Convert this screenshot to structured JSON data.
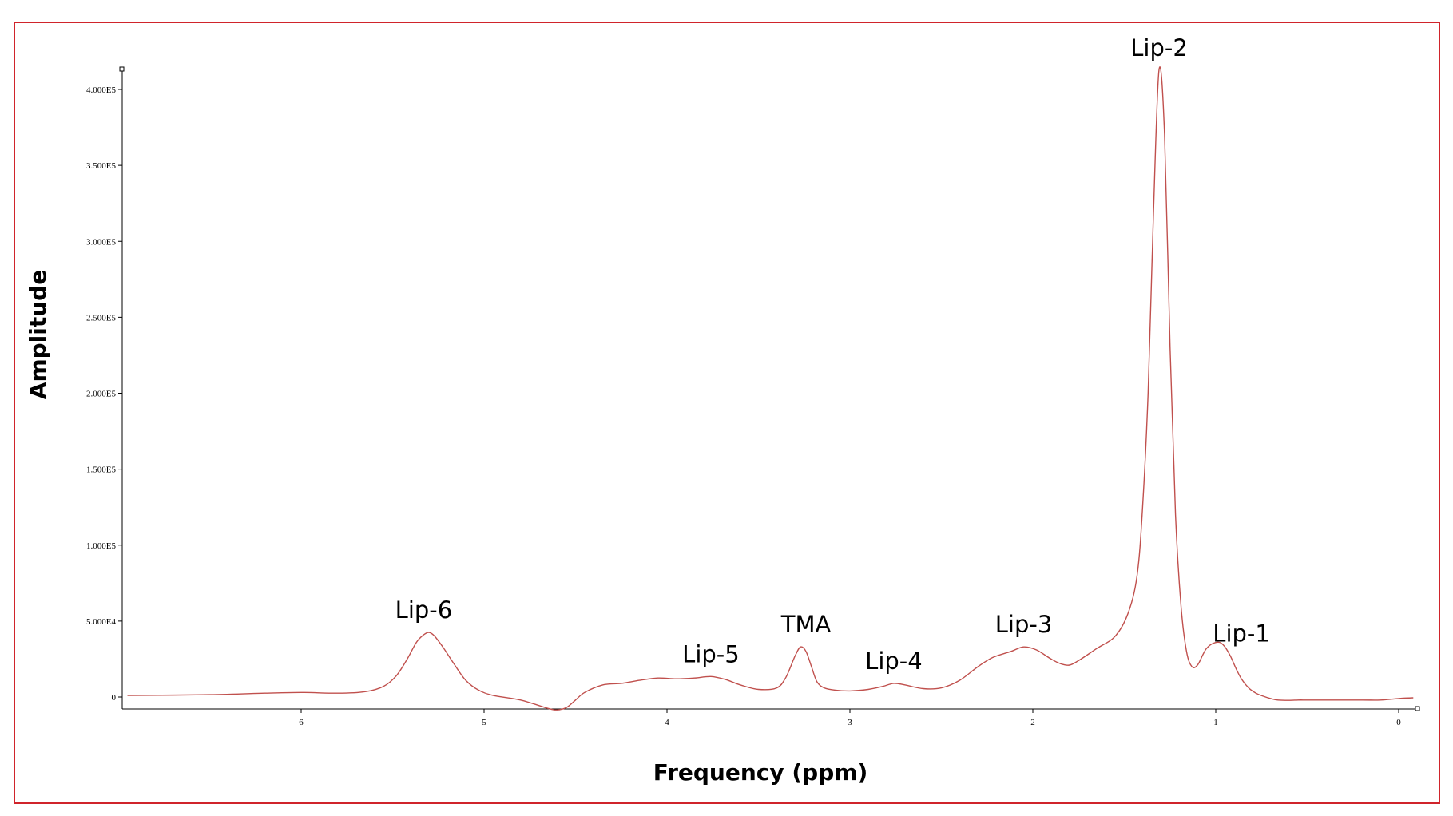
{
  "chart_data": {
    "type": "line",
    "xlabel": "Frequency (ppm)",
    "ylabel": "Amplitude",
    "x_reversed": true,
    "xlim": [
      6.95,
      -0.08
    ],
    "ylim": [
      -8000,
      413000
    ],
    "x_ticks": [
      {
        "value": 6,
        "label": "6"
      },
      {
        "value": 5,
        "label": "5"
      },
      {
        "value": 4,
        "label": "4"
      },
      {
        "value": 3,
        "label": "3"
      },
      {
        "value": 2,
        "label": "2"
      },
      {
        "value": 1,
        "label": "1"
      },
      {
        "value": 0,
        "label": "0"
      }
    ],
    "y_ticks": [
      {
        "value": 0,
        "label": "0"
      },
      {
        "value": 50000,
        "label": "5.000E4"
      },
      {
        "value": 100000,
        "label": "1.000E5"
      },
      {
        "value": 150000,
        "label": "1.500E5"
      },
      {
        "value": 200000,
        "label": "2.000E5"
      },
      {
        "value": 250000,
        "label": "2.500E5"
      },
      {
        "value": 300000,
        "label": "3.000E5"
      },
      {
        "value": 350000,
        "label": "3.500E5"
      },
      {
        "value": 400000,
        "label": "4.000E5"
      }
    ],
    "grid": false,
    "colors": {
      "line": "#c0504d",
      "axis": "#000000",
      "frame": "#d0242b"
    },
    "series": [
      {
        "x": [
          6.95,
          6.5,
          6.2,
          6.0,
          5.8,
          5.65,
          5.55,
          5.48,
          5.42,
          5.37,
          5.33,
          5.3,
          5.27,
          5.22,
          5.16,
          5.1,
          5.03,
          4.95,
          4.8,
          4.65,
          4.6,
          4.55,
          4.5,
          4.45,
          4.35,
          4.25,
          4.15,
          4.05,
          3.95,
          3.85,
          3.76,
          3.68,
          3.6,
          3.5,
          3.4,
          3.35,
          3.3,
          3.27,
          3.24,
          3.21,
          3.18,
          3.14,
          3.08,
          3.0,
          2.9,
          2.82,
          2.76,
          2.7,
          2.6,
          2.5,
          2.4,
          2.3,
          2.22,
          2.12,
          2.05,
          1.98,
          1.9,
          1.85,
          1.8,
          1.75,
          1.65,
          1.55,
          1.48,
          1.43,
          1.4,
          1.37,
          1.34,
          1.31,
          1.28,
          1.25,
          1.22,
          1.19,
          1.16,
          1.13,
          1.1,
          1.07,
          1.05,
          1.02,
          0.98,
          0.95,
          0.92,
          0.89,
          0.86,
          0.82,
          0.78,
          0.74,
          0.7,
          0.66,
          0.6,
          0.55,
          0.5,
          0.4,
          0.2,
          0.1,
          0.0,
          -0.08
        ],
        "y": [
          1000,
          1500,
          2500,
          3000,
          2500,
          3500,
          7000,
          14000,
          25000,
          36000,
          41000,
          42500,
          40000,
          32000,
          21000,
          11000,
          4500,
          1000,
          -2000,
          -7500,
          -8500,
          -7000,
          -2000,
          3000,
          8000,
          9000,
          11000,
          12500,
          12000,
          12500,
          13500,
          11500,
          8000,
          5000,
          6000,
          13000,
          27000,
          33000,
          30000,
          20000,
          10000,
          6000,
          4500,
          4000,
          5000,
          7000,
          9000,
          8000,
          5500,
          6000,
          11000,
          20000,
          26000,
          30000,
          33000,
          31000,
          25000,
          22000,
          21000,
          24000,
          32000,
          40000,
          55000,
          80000,
          125000,
          200000,
          320000,
          413000,
          370000,
          230000,
          120000,
          60000,
          30000,
          20000,
          21000,
          28000,
          32000,
          35000,
          36000,
          33000,
          27000,
          19000,
          12000,
          6000,
          2500,
          500,
          -1000,
          -2000,
          -2200,
          -2000,
          -2000,
          -2000,
          -2000,
          -2000,
          -1000,
          -500
        ]
      }
    ],
    "annotations": [
      {
        "text": "Lip-6",
        "x": 5.33
      },
      {
        "text": "Lip-5",
        "x": 3.76
      },
      {
        "text": "TMA",
        "x": 3.24
      },
      {
        "text": "Lip-4",
        "x": 2.76
      },
      {
        "text": "Lip-3",
        "x": 2.05
      },
      {
        "text": "Lip-2",
        "x": 1.31
      },
      {
        "text": "Lip-1",
        "x": 0.86
      }
    ]
  }
}
